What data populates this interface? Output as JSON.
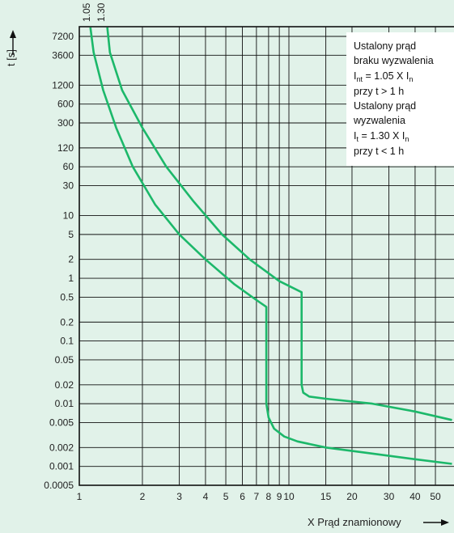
{
  "chart_data": {
    "type": "line",
    "title": "",
    "ylabel": "t [s]",
    "xlabel": "X Prąd znamionowy",
    "x_scale": "log",
    "y_scale": "log",
    "xlim": [
      1,
      60
    ],
    "ylim": [
      0.0005,
      10000
    ],
    "grid": true,
    "x_ticks": [
      1,
      2,
      3,
      4,
      5,
      6,
      7,
      8,
      9,
      10,
      15,
      20,
      30,
      40,
      50
    ],
    "x_tick_labels": [
      "1",
      "2",
      "3",
      "4",
      "5",
      "6",
      "7",
      "8",
      "9",
      "10",
      "15",
      "20",
      "30",
      "40",
      "50"
    ],
    "y_ticks": [
      7200,
      3600,
      1200,
      600,
      300,
      120,
      60,
      30,
      10,
      5,
      2,
      1,
      0.5,
      0.2,
      0.1,
      0.05,
      0.02,
      0.01,
      0.005,
      0.002,
      0.001,
      0.0005
    ],
    "y_tick_labels": [
      "7200",
      "3600",
      "1200",
      "600",
      "300",
      "120",
      "60",
      "30",
      "10",
      "5",
      "2",
      "1",
      "0.5",
      "0.2",
      "0.1",
      "0.05",
      "0.02",
      "0.01",
      "0.005",
      "0.002",
      "0.001",
      "0.0005"
    ],
    "series": [
      {
        "name": "1.05",
        "points": [
          [
            1.13,
            10000
          ],
          [
            1.17,
            4000
          ],
          [
            1.3,
            1000
          ],
          [
            1.5,
            250
          ],
          [
            1.8,
            60
          ],
          [
            2.3,
            15
          ],
          [
            3.0,
            5
          ],
          [
            4.0,
            2
          ],
          [
            5.5,
            0.8
          ],
          [
            7.0,
            0.45
          ],
          [
            7.8,
            0.35
          ],
          [
            7.8,
            0.02
          ],
          [
            7.8,
            0.01
          ],
          [
            8.0,
            0.006
          ],
          [
            8.5,
            0.004
          ],
          [
            9.5,
            0.003
          ],
          [
            11,
            0.0025
          ],
          [
            15,
            0.002
          ],
          [
            25,
            0.0016
          ],
          [
            40,
            0.0013
          ],
          [
            60,
            0.0011
          ]
        ]
      },
      {
        "name": "1.30",
        "points": [
          [
            1.36,
            10000
          ],
          [
            1.4,
            4000
          ],
          [
            1.6,
            1000
          ],
          [
            2.0,
            250
          ],
          [
            2.6,
            60
          ],
          [
            3.5,
            17
          ],
          [
            4.8,
            5
          ],
          [
            6.5,
            2
          ],
          [
            9.0,
            0.9
          ],
          [
            11.5,
            0.6
          ],
          [
            11.5,
            0.05
          ],
          [
            11.5,
            0.02
          ],
          [
            11.7,
            0.015
          ],
          [
            12.5,
            0.013
          ],
          [
            15,
            0.012
          ],
          [
            25,
            0.01
          ],
          [
            40,
            0.0075
          ],
          [
            60,
            0.0055
          ]
        ]
      }
    ],
    "curve_labels": [
      "1.05",
      "1.30"
    ],
    "annotation": {
      "line1": "Ustalony prąd",
      "line2": "braku wyzwalenia",
      "line3_main": "I",
      "line3_sub": "nt",
      "line3_rest": " = 1.05 X I",
      "line3_sub2": "n",
      "line4": "przy t > 1 h",
      "line5": "Ustalony prąd",
      "line6": "wyzwalenia",
      "line7_main": "I",
      "line7_sub": "t",
      "line7_rest": " = 1.30 X I",
      "line7_sub2": "n",
      "line8": "przy t < 1 h"
    },
    "colors": {
      "curve": "#1cb86a",
      "background": "#e1f2e9",
      "grid": "#111111"
    }
  }
}
